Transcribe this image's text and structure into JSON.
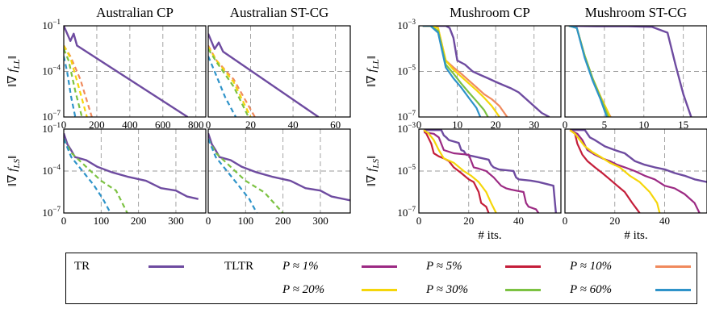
{
  "chart_data": [
    {
      "type": "line",
      "title": "Australian CP",
      "ylabel": "‖∇ f_LL‖",
      "xlabel": "",
      "yscale": "log",
      "ylim": [
        1e-07,
        0.1
      ],
      "xlim": [
        0,
        860
      ],
      "xticks": [
        "0",
        "200",
        "400",
        "600",
        "800"
      ],
      "yticks": [
        "10^-1",
        "10^-4",
        "10^-7"
      ],
      "series": [
        {
          "name": "TR",
          "x": [
            0,
            40,
            60,
            80,
            750
          ],
          "y": [
            0.1,
            0.01,
            0.03,
            0.005,
            1e-07
          ]
        },
        {
          "name": "P ≈ 10%",
          "x": [
            0,
            40,
            100,
            170
          ],
          "y": [
            0.005,
            0.001,
            3e-05,
            1e-07
          ]
        },
        {
          "name": "P ≈ 20%",
          "x": [
            0,
            40,
            90,
            140
          ],
          "y": [
            0.005,
            0.0008,
            1e-05,
            1e-07
          ]
        },
        {
          "name": "P ≈ 30%",
          "x": [
            0,
            30,
            70,
            110
          ],
          "y": [
            0.003,
            0.0005,
            5e-06,
            1e-07
          ]
        },
        {
          "name": "P ≈ 60%",
          "x": [
            0,
            20,
            45,
            70
          ],
          "y": [
            0.001,
            0.0001,
            2e-06,
            1e-07
          ]
        }
      ]
    },
    {
      "type": "line",
      "title": "Australian ST-CG",
      "xlabel": "",
      "yscale": "log",
      "ylim": [
        1e-07,
        0.1
      ],
      "xlim": [
        0,
        67
      ],
      "xticks": [
        "0",
        "20",
        "40",
        "60"
      ],
      "series": [
        {
          "name": "TR",
          "x": [
            0,
            3,
            5,
            7,
            52
          ],
          "y": [
            0.03,
            0.003,
            0.008,
            0.002,
            1e-07
          ]
        },
        {
          "name": "P ≈ 10%",
          "x": [
            0,
            4,
            12,
            22
          ],
          "y": [
            0.005,
            0.0005,
            3e-05,
            1e-07
          ]
        },
        {
          "name": "P ≈ 20%",
          "x": [
            0,
            4,
            12,
            20
          ],
          "y": [
            0.004,
            0.0005,
            2e-05,
            1e-07
          ]
        },
        {
          "name": "P ≈ 30%",
          "x": [
            0,
            4,
            12,
            19
          ],
          "y": [
            0.003,
            0.0004,
            1e-05,
            1e-07
          ]
        },
        {
          "name": "P ≈ 60%",
          "x": [
            0,
            3,
            8,
            13
          ],
          "y": [
            0.001,
            0.0001,
            2e-06,
            1e-07
          ]
        }
      ]
    },
    {
      "type": "line",
      "title": "",
      "ylabel": "‖∇ f_LS‖",
      "xlabel": "",
      "yscale": "log",
      "ylim": [
        1e-07,
        0.1
      ],
      "xlim": [
        0,
        380
      ],
      "xticks": [
        "0",
        "100",
        "200",
        "300"
      ],
      "yticks": [
        "10^-1",
        "10^-4",
        "10^-7"
      ],
      "series": [
        {
          "name": "TR",
          "x": [
            0,
            10,
            20,
            30,
            60,
            90,
            130,
            170,
            220,
            260,
            300,
            330,
            360
          ],
          "y": [
            0.05,
            0.008,
            0.003,
            0.001,
            0.0006,
            0.0002,
            8e-05,
            4e-05,
            2e-05,
            6e-06,
            4e-06,
            1.5e-06,
            1e-06
          ]
        },
        {
          "name": "P ≈ 30%",
          "x": [
            0,
            20,
            60,
            100,
            140,
            170
          ],
          "y": [
            0.02,
            0.002,
            0.0002,
            2e-05,
            4e-06,
            1e-07
          ]
        },
        {
          "name": "P ≈ 60%",
          "x": [
            0,
            20,
            50,
            80,
            105,
            125
          ],
          "y": [
            0.02,
            0.001,
            0.0001,
            1e-05,
            1e-06,
            1e-07
          ]
        }
      ]
    },
    {
      "type": "line",
      "title": "",
      "xlabel": "",
      "yscale": "log",
      "ylim": [
        1e-07,
        0.1
      ],
      "xlim": [
        0,
        380
      ],
      "xticks": [
        "0",
        "100",
        "200",
        "300"
      ],
      "series": [
        {
          "name": "TR",
          "x": [
            0,
            10,
            20,
            30,
            60,
            90,
            130,
            170,
            220,
            260,
            300,
            330,
            380
          ],
          "y": [
            0.05,
            0.008,
            0.003,
            0.001,
            0.0006,
            0.0002,
            8e-05,
            4e-05,
            2e-05,
            6e-06,
            4e-06,
            1.5e-06,
            8e-07
          ]
        },
        {
          "name": "P ≈ 30%",
          "x": [
            0,
            20,
            60,
            100,
            150,
            200
          ],
          "y": [
            0.02,
            0.002,
            0.0002,
            2e-05,
            3e-06,
            1e-07
          ]
        },
        {
          "name": "P ≈ 60%",
          "x": [
            0,
            20,
            50,
            80,
            110,
            130
          ],
          "y": [
            0.02,
            0.001,
            0.0001,
            1e-05,
            1e-06,
            1e-07
          ]
        }
      ]
    },
    {
      "type": "line",
      "title": "Mushroom CP",
      "ylabel": "‖∇ f_LL‖",
      "xlabel": "",
      "yscale": "log",
      "ylim": [
        1e-07,
        0.001
      ],
      "xlim": [
        0,
        37
      ],
      "xticks": [
        "0",
        "10",
        "20",
        "30"
      ],
      "yticks": [
        "10^-3",
        "10^-5",
        "10^-7"
      ],
      "series": [
        {
          "name": "TR",
          "x": [
            1,
            4,
            7,
            8,
            9,
            10,
            12,
            14,
            16,
            18,
            20,
            22,
            24,
            26,
            28,
            30,
            32,
            34
          ],
          "y": [
            0.001,
            0.001,
            0.001,
            0.0008,
            0.0003,
            3e-05,
            2e-05,
            1e-05,
            7e-06,
            5e-06,
            3.5e-06,
            2.5e-06,
            1.8e-06,
            1.2e-06,
            6e-07,
            3e-07,
            1.5e-07,
            1e-07
          ]
        },
        {
          "name": "P ≈ 10%",
          "x": [
            1,
            3,
            5,
            7,
            9,
            11,
            13,
            15,
            17,
            19,
            21,
            23
          ],
          "y": [
            0.001,
            0.001,
            0.0008,
            3e-05,
            1.5e-05,
            8e-06,
            4e-06,
            2e-06,
            1e-06,
            6e-07,
            3e-07,
            1e-07
          ]
        },
        {
          "name": "P ≈ 20%",
          "x": [
            1,
            3,
            5,
            7,
            9,
            11,
            13,
            15,
            17,
            19,
            21
          ],
          "y": [
            0.001,
            0.001,
            0.0008,
            3e-05,
            1.2e-05,
            6e-06,
            3e-06,
            1.5e-06,
            7e-07,
            3e-07,
            1e-07
          ]
        },
        {
          "name": "P ≈ 30%",
          "x": [
            1,
            3,
            5,
            7,
            9,
            11,
            13,
            15,
            17,
            18
          ],
          "y": [
            0.001,
            0.001,
            0.0006,
            2e-05,
            8e-06,
            3e-06,
            1.2e-06,
            5e-07,
            2e-07,
            1e-07
          ]
        },
        {
          "name": "P ≈ 60%",
          "x": [
            1,
            3,
            5,
            7,
            9,
            11,
            13,
            15,
            16
          ],
          "y": [
            0.001,
            0.001,
            0.0005,
            1.5e-05,
            5e-06,
            2e-06,
            7e-07,
            2.5e-07,
            1e-07
          ]
        }
      ]
    },
    {
      "type": "line",
      "title": "Mushroom ST-CG",
      "xlabel": "",
      "yscale": "log",
      "ylim": [
        1e-07,
        0.001
      ],
      "xlim": [
        0,
        18
      ],
      "xticks": [
        "0",
        "5",
        "10",
        "15"
      ],
      "series": [
        {
          "name": "TR",
          "x": [
            0.5,
            4,
            8,
            11,
            13,
            14,
            15,
            16
          ],
          "y": [
            0.001,
            0.00095,
            0.00095,
            0.0009,
            0.0005,
            2e-05,
            1e-06,
            1e-07
          ]
        },
        {
          "name": "P ≈ 10%",
          "x": [
            0.5,
            1.5,
            2.5,
            3.5,
            4.5,
            5.5,
            5.8
          ],
          "y": [
            0.001,
            0.0008,
            5e-05,
            5e-06,
            8e-07,
            1.5e-07,
            1e-07
          ]
        },
        {
          "name": "P ≈ 20%",
          "x": [
            0.5,
            1.5,
            2.5,
            3.5,
            4.5,
            5.5,
            5.7
          ],
          "y": [
            0.001,
            0.0008,
            5e-05,
            5e-06,
            8e-07,
            1.5e-07,
            1e-07
          ]
        },
        {
          "name": "P ≈ 30%",
          "x": [
            0.5,
            1.5,
            2.5,
            3.5,
            4.5,
            5.5
          ],
          "y": [
            0.001,
            0.0008,
            5e-05,
            5e-06,
            7e-07,
            1e-07
          ]
        },
        {
          "name": "P ≈ 60%",
          "x": [
            0.5,
            1.5,
            2.5,
            3.5,
            4.5,
            5.3
          ],
          "y": [
            0.001,
            0.0008,
            4e-05,
            4e-06,
            6e-07,
            1e-07
          ]
        }
      ]
    },
    {
      "type": "line",
      "title": "",
      "ylabel": "‖∇ f_LS‖",
      "xlabel": "# its.",
      "yscale": "log",
      "ylim": [
        1e-07,
        0.001
      ],
      "xlim": [
        0,
        57
      ],
      "xticks": [
        "0",
        "20",
        "40"
      ],
      "yticks": [
        "10^-3",
        "10^-5",
        "10^-7"
      ],
      "series": [
        {
          "name": "TR",
          "x": [
            2,
            9,
            10,
            11,
            12,
            16,
            17,
            18,
            19,
            22,
            28,
            29,
            30,
            32,
            38,
            39,
            40,
            45,
            48,
            54,
            55
          ],
          "y": [
            0.0009,
            0.0009,
            0.0005,
            0.0004,
            0.0003,
            0.00022,
            0.0001,
            9e-05,
            6e-05,
            5e-05,
            3.5e-05,
            2e-05,
            1.5e-05,
            1.2e-05,
            1e-05,
            5e-06,
            4e-06,
            3.5e-06,
            3e-06,
            2e-06,
            1e-07
          ]
        },
        {
          "name": "P ≈ 1%",
          "x": [
            2,
            6,
            8,
            10,
            14,
            20,
            22,
            24,
            27,
            30,
            33,
            35,
            37,
            42,
            43,
            44,
            47,
            48
          ],
          "y": [
            0.0007,
            0.0006,
            0.0004,
            0.0001,
            7e-05,
            6e-05,
            1.5e-05,
            1.3e-05,
            1e-05,
            5e-06,
            2e-06,
            1.5e-06,
            1.3e-06,
            1e-06,
            3e-07,
            2e-07,
            1.5e-07,
            1e-07
          ]
        },
        {
          "name": "P ≈ 5%",
          "x": [
            2,
            3,
            5,
            6,
            8,
            10,
            12,
            14,
            17,
            20,
            22,
            24,
            25,
            27,
            28
          ],
          "y": [
            0.0009,
            0.0006,
            0.0002,
            7e-05,
            5e-05,
            4e-05,
            3e-05,
            1.5e-05,
            8e-06,
            4e-06,
            3e-06,
            1e-06,
            3e-07,
            2e-07,
            1e-07
          ]
        },
        {
          "name": "P ≈ 20%",
          "x": [
            2,
            4,
            6,
            8,
            10,
            14,
            18,
            21,
            24,
            27,
            29,
            31
          ],
          "y": [
            0.0009,
            0.0006,
            0.0003,
            0.0001,
            4e-05,
            2.5e-05,
            1e-05,
            6e-06,
            3e-06,
            1e-06,
            3e-07,
            1e-07
          ]
        }
      ]
    },
    {
      "type": "line",
      "title": "",
      "xlabel": "# its.",
      "yscale": "log",
      "ylim": [
        1e-07,
        0.001
      ],
      "xlim": [
        0,
        57
      ],
      "xticks": [
        "0",
        "20",
        "40"
      ],
      "series": [
        {
          "name": "TR",
          "x": [
            2,
            8,
            10,
            12,
            16,
            20,
            24,
            28,
            32,
            36,
            40,
            44,
            48,
            52,
            57
          ],
          "y": [
            0.0009,
            0.0009,
            0.0004,
            0.0003,
            0.00015,
            0.0001,
            7e-05,
            3e-05,
            2e-05,
            1.5e-05,
            1.2e-05,
            8e-06,
            6e-06,
            4e-06,
            3e-06
          ]
        },
        {
          "name": "P ≈ 1%",
          "x": [
            2,
            5,
            7,
            9,
            12,
            15,
            18,
            21,
            24,
            28,
            32,
            36,
            40,
            44,
            48,
            52,
            54
          ],
          "y": [
            0.0009,
            0.0006,
            0.0003,
            0.0001,
            6e-05,
            4e-05,
            3e-05,
            2e-05,
            1.5e-05,
            1e-05,
            6e-06,
            4e-06,
            2e-06,
            1.5e-06,
            8e-07,
            3e-07,
            1e-07
          ]
        },
        {
          "name": "P ≈ 5%",
          "x": [
            2,
            4,
            5,
            7,
            9,
            12,
            15,
            18,
            21,
            24,
            27,
            30
          ],
          "y": [
            0.0009,
            0.0006,
            0.0002,
            6e-05,
            3e-05,
            1.5e-05,
            8e-06,
            4e-06,
            2e-06,
            1e-06,
            3e-07,
            1e-07
          ]
        },
        {
          "name": "P ≈ 20%",
          "x": [
            2,
            4,
            6,
            8,
            11,
            14,
            18,
            22,
            26,
            30,
            34,
            37,
            38
          ],
          "y": [
            0.0009,
            0.0006,
            0.0003,
            0.00015,
            8e-05,
            5e-05,
            2.5e-05,
            1.5e-05,
            6e-06,
            3e-06,
            1e-06,
            3e-07,
            1e-07
          ]
        }
      ]
    }
  ],
  "colors": {
    "TR": "#6e4ba0",
    "P ≈ 1%": "#9c2a83",
    "P ≈ 5%": "#c41e3a",
    "P ≈ 10%": "#f08a5d",
    "P ≈ 20%": "#f5d60a",
    "P ≈ 30%": "#7cc242",
    "P ≈ 60%": "#2e93c9"
  },
  "legend": {
    "tr_label": "TR",
    "tltr_label": "TLTR",
    "items": [
      {
        "label": "P ≈ 1%",
        "key": "P ≈ 1%"
      },
      {
        "label": "P ≈ 5%",
        "key": "P ≈ 5%"
      },
      {
        "label": "P ≈ 10%",
        "key": "P ≈ 10%"
      },
      {
        "label": "P ≈ 20%",
        "key": "P ≈ 20%"
      },
      {
        "label": "P ≈ 30%",
        "key": "P ≈ 30%"
      },
      {
        "label": "P ≈ 60%",
        "key": "P ≈ 60%"
      }
    ]
  }
}
